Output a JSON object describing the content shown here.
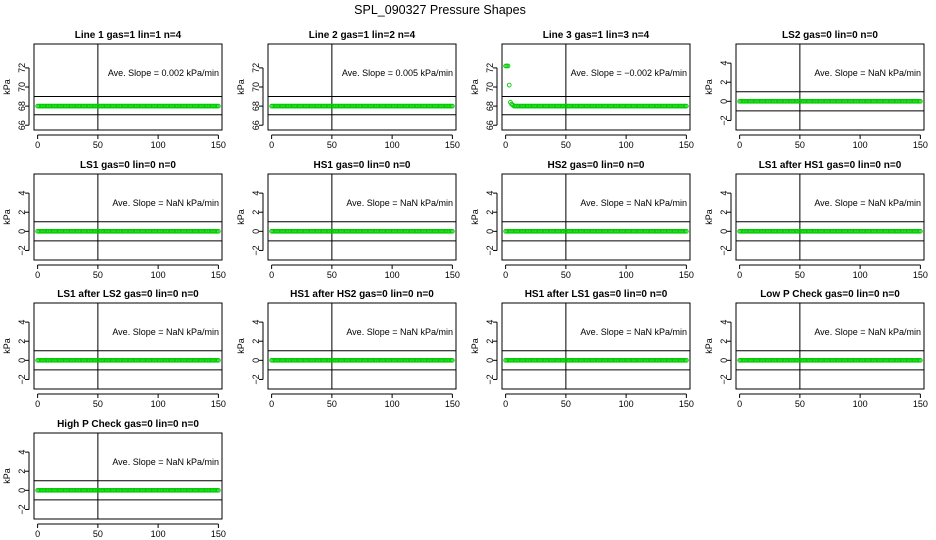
{
  "figure": {
    "title": "SPL_090327  Pressure Shapes",
    "ylabel": "kPa",
    "point_color": "#00cc00"
  },
  "chart_data": [
    {
      "type": "scatter",
      "title": "Line 1 gas=1 lin=1 n=4",
      "slope_prefix": "Ave. Slope =",
      "slope_value": "0.002",
      "slope_unit": "kPa/min",
      "xlim": [
        -3,
        153
      ],
      "ylim": [
        65.5,
        74.5
      ],
      "xticks": [
        0,
        50,
        100,
        150
      ],
      "yticks": [
        66,
        68,
        70,
        72
      ],
      "hlines": [
        67.1,
        69.0
      ],
      "vline": 50,
      "series": {
        "x_start": 0,
        "x_end": 150,
        "n": 151,
        "y_default": 68.0,
        "overrides": []
      }
    },
    {
      "type": "scatter",
      "title": "Line 2 gas=1 lin=2 n=4",
      "slope_prefix": "Ave. Slope =",
      "slope_value": "0.005",
      "slope_unit": "kPa/min",
      "xlim": [
        -3,
        153
      ],
      "ylim": [
        65.5,
        74.5
      ],
      "xticks": [
        0,
        50,
        100,
        150
      ],
      "yticks": [
        66,
        68,
        70,
        72
      ],
      "hlines": [
        67.1,
        69.0
      ],
      "vline": 50,
      "series": {
        "x_start": 0,
        "x_end": 150,
        "n": 151,
        "y_default": 68.0,
        "overrides": []
      }
    },
    {
      "type": "scatter",
      "title": "Line 3 gas=1 lin=3 n=4",
      "slope_prefix": "Ave. Slope =",
      "slope_value": "−0.002",
      "slope_unit": "kPa/min",
      "xlim": [
        -3,
        153
      ],
      "ylim": [
        65.5,
        74.5
      ],
      "xticks": [
        0,
        50,
        100,
        150
      ],
      "yticks": [
        66,
        68,
        70,
        72
      ],
      "hlines": [
        67.1,
        69.0
      ],
      "vline": 50,
      "series": {
        "x_start": 0,
        "x_end": 150,
        "n": 151,
        "y_default": 68.0,
        "overrides": [
          [
            0,
            72.2
          ],
          [
            1,
            72.2
          ],
          [
            2,
            72.2
          ],
          [
            3,
            70.2
          ],
          [
            4,
            68.4
          ],
          [
            5,
            68.2
          ],
          [
            6,
            68.1
          ]
        ]
      }
    },
    {
      "type": "scatter",
      "title": "LS2 gas=0 lin=0 n=0",
      "slope_prefix": "Ave. Slope =",
      "slope_value": "NaN",
      "slope_unit": "kPa/min",
      "xlim": [
        -3,
        153
      ],
      "ylim": [
        -3,
        6
      ],
      "xticks": [
        0,
        50,
        100,
        150
      ],
      "yticks": [
        -2,
        0,
        2,
        4
      ],
      "hlines": [
        -1,
        1
      ],
      "vline": 50,
      "series": {
        "x_start": 0,
        "x_end": 150,
        "n": 151,
        "y_default": 0,
        "overrides": []
      }
    },
    {
      "type": "scatter",
      "title": "LS1 gas=0 lin=0 n=0",
      "slope_prefix": "Ave. Slope =",
      "slope_value": "NaN",
      "slope_unit": "kPa/min",
      "xlim": [
        -3,
        153
      ],
      "ylim": [
        -3,
        6
      ],
      "xticks": [
        0,
        50,
        100,
        150
      ],
      "yticks": [
        -2,
        0,
        2,
        4
      ],
      "hlines": [
        -1,
        1
      ],
      "vline": 50,
      "series": {
        "x_start": 0,
        "x_end": 150,
        "n": 151,
        "y_default": 0,
        "overrides": []
      }
    },
    {
      "type": "scatter",
      "title": "HS1 gas=0 lin=0 n=0",
      "slope_prefix": "Ave. Slope =",
      "slope_value": "NaN",
      "slope_unit": "kPa/min",
      "xlim": [
        -3,
        153
      ],
      "ylim": [
        -3,
        6
      ],
      "xticks": [
        0,
        50,
        100,
        150
      ],
      "yticks": [
        -2,
        0,
        2,
        4
      ],
      "hlines": [
        -1,
        1
      ],
      "vline": 50,
      "series": {
        "x_start": 0,
        "x_end": 150,
        "n": 151,
        "y_default": 0,
        "overrides": []
      }
    },
    {
      "type": "scatter",
      "title": "HS2 gas=0 lin=0 n=0",
      "slope_prefix": "Ave. Slope =",
      "slope_value": "NaN",
      "slope_unit": "kPa/min",
      "xlim": [
        -3,
        153
      ],
      "ylim": [
        -3,
        6
      ],
      "xticks": [
        0,
        50,
        100,
        150
      ],
      "yticks": [
        -2,
        0,
        2,
        4
      ],
      "hlines": [
        -1,
        1
      ],
      "vline": 50,
      "series": {
        "x_start": 0,
        "x_end": 150,
        "n": 151,
        "y_default": 0,
        "overrides": []
      }
    },
    {
      "type": "scatter",
      "title": "LS1 after HS1 gas=0 lin=0 n=0",
      "slope_prefix": "Ave. Slope =",
      "slope_value": "NaN",
      "slope_unit": "kPa/min",
      "xlim": [
        -3,
        153
      ],
      "ylim": [
        -3,
        6
      ],
      "xticks": [
        0,
        50,
        100,
        150
      ],
      "yticks": [
        -2,
        0,
        2,
        4
      ],
      "hlines": [
        -1,
        1
      ],
      "vline": 50,
      "series": {
        "x_start": 0,
        "x_end": 150,
        "n": 151,
        "y_default": 0,
        "overrides": []
      }
    },
    {
      "type": "scatter",
      "title": "LS1 after LS2 gas=0 lin=0 n=0",
      "slope_prefix": "Ave. Slope =",
      "slope_value": "NaN",
      "slope_unit": "kPa/min",
      "xlim": [
        -3,
        153
      ],
      "ylim": [
        -3,
        6
      ],
      "xticks": [
        0,
        50,
        100,
        150
      ],
      "yticks": [
        -2,
        0,
        2,
        4
      ],
      "hlines": [
        -1,
        1
      ],
      "vline": 50,
      "series": {
        "x_start": 0,
        "x_end": 150,
        "n": 151,
        "y_default": 0,
        "overrides": []
      }
    },
    {
      "type": "scatter",
      "title": "HS1 after HS2 gas=0 lin=0 n=0",
      "slope_prefix": "Ave. Slope =",
      "slope_value": "NaN",
      "slope_unit": "kPa/min",
      "xlim": [
        -3,
        153
      ],
      "ylim": [
        -3,
        6
      ],
      "xticks": [
        0,
        50,
        100,
        150
      ],
      "yticks": [
        -2,
        0,
        2,
        4
      ],
      "hlines": [
        -1,
        1
      ],
      "vline": 50,
      "series": {
        "x_start": 0,
        "x_end": 150,
        "n": 151,
        "y_default": 0,
        "overrides": []
      }
    },
    {
      "type": "scatter",
      "title": "HS1 after LS1 gas=0 lin=0 n=0",
      "slope_prefix": "Ave. Slope =",
      "slope_value": "NaN",
      "slope_unit": "kPa/min",
      "xlim": [
        -3,
        153
      ],
      "ylim": [
        -3,
        6
      ],
      "xticks": [
        0,
        50,
        100,
        150
      ],
      "yticks": [
        -2,
        0,
        2,
        4
      ],
      "hlines": [
        -1,
        1
      ],
      "vline": 50,
      "series": {
        "x_start": 0,
        "x_end": 150,
        "n": 151,
        "y_default": 0,
        "overrides": []
      }
    },
    {
      "type": "scatter",
      "title": "Low P Check gas=0 lin=0 n=0",
      "slope_prefix": "Ave. Slope =",
      "slope_value": "NaN",
      "slope_unit": "kPa/min",
      "xlim": [
        -3,
        153
      ],
      "ylim": [
        -3,
        6
      ],
      "xticks": [
        0,
        50,
        100,
        150
      ],
      "yticks": [
        -2,
        0,
        2,
        4
      ],
      "hlines": [
        -1,
        1
      ],
      "vline": 50,
      "series": {
        "x_start": 0,
        "x_end": 150,
        "n": 151,
        "y_default": 0,
        "overrides": []
      }
    },
    {
      "type": "scatter",
      "title": "High P Check gas=0 lin=0 n=0",
      "slope_prefix": "Ave. Slope =",
      "slope_value": "NaN",
      "slope_unit": "kPa/min",
      "xlim": [
        -3,
        153
      ],
      "ylim": [
        -3,
        6
      ],
      "xticks": [
        0,
        50,
        100,
        150
      ],
      "yticks": [
        -2,
        0,
        2,
        4
      ],
      "hlines": [
        -1,
        1
      ],
      "vline": 50,
      "series": {
        "x_start": 0,
        "x_end": 150,
        "n": 151,
        "y_default": 0,
        "overrides": []
      }
    }
  ]
}
